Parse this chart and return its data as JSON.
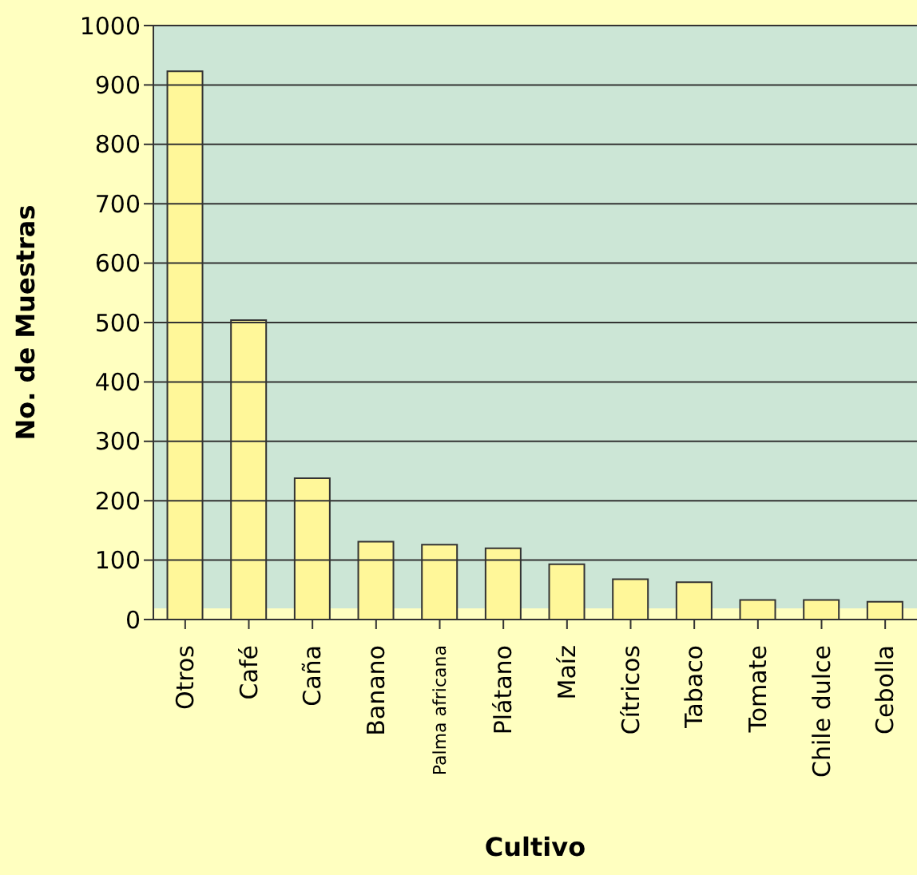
{
  "chart_data": {
    "type": "bar",
    "xlabel": "Cultivo",
    "ylabel": "No. de Muestras",
    "categories": [
      "Otros",
      "Café",
      "Caña",
      "Banano",
      "Palma africana",
      "Plátano",
      "Maíz",
      "Cítricos",
      "Tabaco",
      "Tomate",
      "Chile dulce",
      "Cebolla"
    ],
    "values": [
      923,
      504,
      238,
      131,
      126,
      120,
      93,
      68,
      63,
      33,
      33,
      30
    ],
    "color": "#fff799",
    "ylim": [
      0,
      1000
    ],
    "yticks": [
      0,
      100,
      200,
      300,
      400,
      500,
      600,
      700,
      800,
      900,
      1000
    ],
    "grid": "y"
  }
}
